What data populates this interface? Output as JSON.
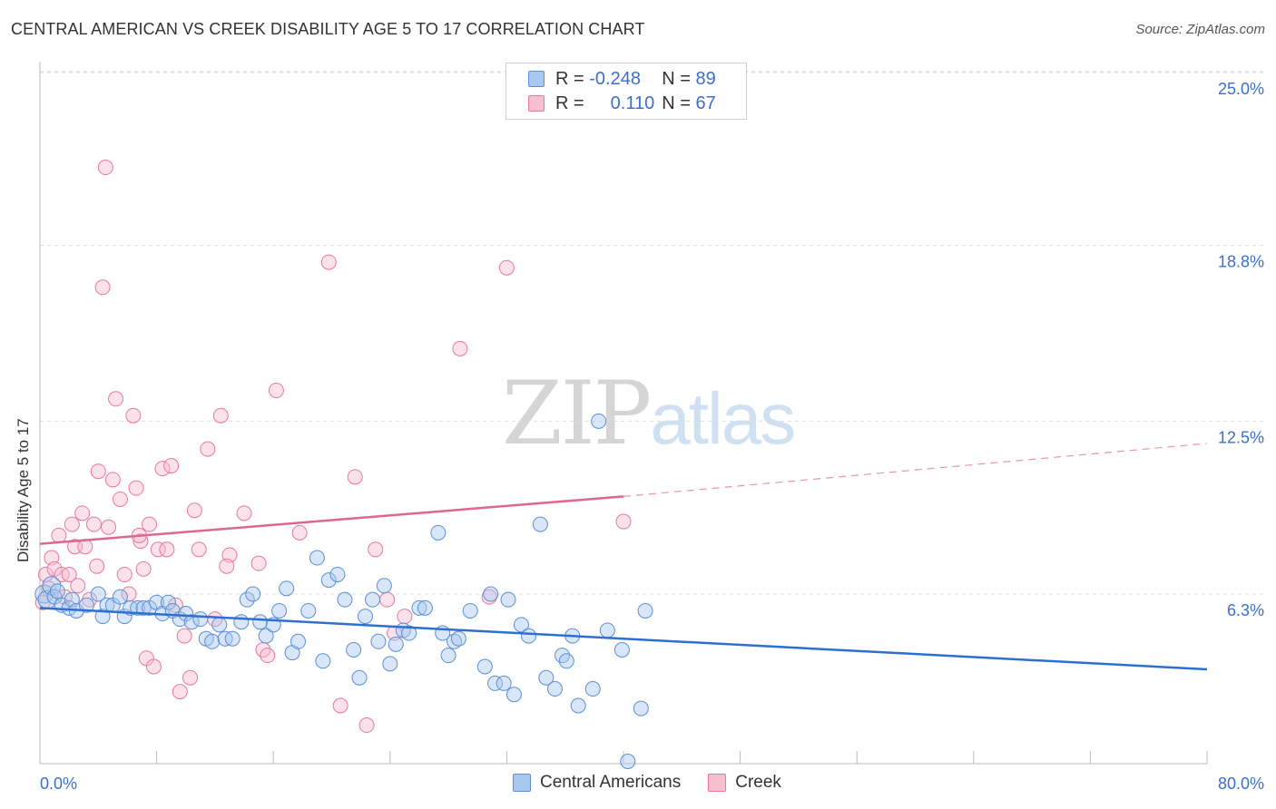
{
  "title": "CENTRAL AMERICAN VS CREEK DISABILITY AGE 5 TO 17 CORRELATION CHART",
  "source": "Source: ZipAtlas.com",
  "watermark": {
    "zip": "ZIP",
    "atlas": "atlas"
  },
  "legend_top": {
    "rows": [
      {
        "r_label": "R = ",
        "r_value": "-0.248",
        "n_label": "N = ",
        "n_value": "89"
      },
      {
        "r_label": "R = ",
        "r_value": "0.110",
        "n_label": "N = ",
        "n_value": "67"
      }
    ]
  },
  "colors": {
    "blue_fill": "#a9c8f0",
    "blue_stroke": "#5b8fd6",
    "blue_line": "#2e6fd1",
    "pink_fill": "#f6bfd0",
    "pink_stroke": "#e8789c",
    "pink_line": "#e06692",
    "tick_label": "#3b6fcf",
    "grid": "#dddddd"
  },
  "chart_data": {
    "type": "scatter",
    "title": "CENTRAL AMERICAN VS CREEK DISABILITY AGE 5 TO 17 CORRELATION CHART",
    "xlabel": "",
    "ylabel": "Disability Age 5 to 17",
    "xlim": [
      0,
      80
    ],
    "ylim": [
      0,
      26
    ],
    "x_tick_labels": [
      "0.0%",
      "80.0%"
    ],
    "y_ticks": [
      6.3,
      12.5,
      18.8,
      25.0
    ],
    "y_tick_labels": [
      "6.3%",
      "12.5%",
      "18.8%",
      "25.0%"
    ],
    "grid": "horizontal dashed",
    "legend": "bottom-center",
    "series": [
      {
        "name": "Central Americans",
        "r": -0.248,
        "n": 89,
        "trend": {
          "x": [
            0,
            80
          ],
          "y": [
            5.8,
            3.6
          ]
        },
        "points": [
          [
            0.3,
            6.3
          ],
          [
            0.5,
            6.1
          ],
          [
            0.8,
            6.6
          ],
          [
            1.0,
            6.2
          ],
          [
            1.2,
            6.4
          ],
          [
            1.5,
            5.9
          ],
          [
            2.0,
            5.8
          ],
          [
            2.2,
            6.1
          ],
          [
            2.5,
            5.7
          ],
          [
            3.2,
            5.9
          ],
          [
            4.0,
            6.3
          ],
          [
            4.3,
            5.5
          ],
          [
            4.6,
            5.9
          ],
          [
            5.0,
            5.9
          ],
          [
            5.5,
            6.2
          ],
          [
            5.8,
            5.5
          ],
          [
            6.2,
            5.8
          ],
          [
            6.7,
            5.8
          ],
          [
            7.1,
            5.8
          ],
          [
            7.5,
            5.8
          ],
          [
            8.0,
            6.0
          ],
          [
            8.4,
            5.6
          ],
          [
            8.8,
            6.0
          ],
          [
            9.1,
            5.7
          ],
          [
            9.6,
            5.4
          ],
          [
            10.0,
            5.6
          ],
          [
            10.4,
            5.3
          ],
          [
            11.0,
            5.4
          ],
          [
            11.4,
            4.7
          ],
          [
            11.8,
            4.6
          ],
          [
            12.3,
            5.2
          ],
          [
            12.7,
            4.7
          ],
          [
            13.2,
            4.7
          ],
          [
            13.8,
            5.3
          ],
          [
            14.2,
            6.1
          ],
          [
            14.6,
            6.3
          ],
          [
            15.1,
            5.3
          ],
          [
            15.5,
            4.8
          ],
          [
            16.0,
            5.2
          ],
          [
            16.4,
            5.7
          ],
          [
            16.9,
            6.5
          ],
          [
            17.3,
            4.2
          ],
          [
            17.7,
            4.6
          ],
          [
            18.4,
            5.7
          ],
          [
            19.0,
            7.6
          ],
          [
            19.4,
            3.9
          ],
          [
            19.8,
            6.8
          ],
          [
            20.4,
            7.0
          ],
          [
            20.9,
            6.1
          ],
          [
            21.5,
            4.3
          ],
          [
            21.9,
            3.3
          ],
          [
            22.3,
            5.5
          ],
          [
            22.8,
            6.1
          ],
          [
            23.2,
            4.6
          ],
          [
            23.6,
            6.6
          ],
          [
            24.0,
            3.8
          ],
          [
            24.4,
            4.5
          ],
          [
            24.9,
            5.0
          ],
          [
            25.3,
            4.9
          ],
          [
            26.0,
            5.8
          ],
          [
            26.4,
            5.8
          ],
          [
            27.3,
            8.5
          ],
          [
            27.6,
            4.9
          ],
          [
            28.0,
            4.1
          ],
          [
            28.4,
            4.6
          ],
          [
            28.7,
            4.7
          ],
          [
            29.5,
            5.7
          ],
          [
            30.5,
            3.7
          ],
          [
            30.9,
            6.3
          ],
          [
            31.2,
            3.1
          ],
          [
            31.8,
            3.1
          ],
          [
            32.1,
            6.1
          ],
          [
            32.5,
            2.7
          ],
          [
            33.0,
            5.2
          ],
          [
            33.5,
            4.8
          ],
          [
            34.3,
            8.8
          ],
          [
            34.7,
            3.3
          ],
          [
            35.3,
            2.9
          ],
          [
            35.8,
            4.1
          ],
          [
            36.1,
            3.9
          ],
          [
            36.5,
            4.8
          ],
          [
            36.9,
            2.3
          ],
          [
            37.9,
            2.9
          ],
          [
            38.3,
            12.5
          ],
          [
            38.9,
            5.0
          ],
          [
            39.9,
            4.3
          ],
          [
            40.3,
            0.3
          ],
          [
            41.2,
            2.2
          ],
          [
            41.5,
            5.7
          ]
        ]
      },
      {
        "name": "Creek",
        "r": 0.11,
        "n": 67,
        "trend": {
          "x": [
            0,
            40
          ],
          "y": [
            8.1,
            9.8
          ],
          "dashed_to": {
            "x": 80,
            "y": 11.7
          }
        },
        "points": [
          [
            0.2,
            6.0
          ],
          [
            0.4,
            7.0
          ],
          [
            0.6,
            6.5
          ],
          [
            0.8,
            7.6
          ],
          [
            1.0,
            7.2
          ],
          [
            1.3,
            8.4
          ],
          [
            1.5,
            7.0
          ],
          [
            1.7,
            6.2
          ],
          [
            2.0,
            7.0
          ],
          [
            2.2,
            8.8
          ],
          [
            2.4,
            8.0
          ],
          [
            2.6,
            6.6
          ],
          [
            2.9,
            9.2
          ],
          [
            3.1,
            8.0
          ],
          [
            3.4,
            6.1
          ],
          [
            3.7,
            8.8
          ],
          [
            4.0,
            10.7
          ],
          [
            4.3,
            17.3
          ],
          [
            4.5,
            21.6
          ],
          [
            4.7,
            8.7
          ],
          [
            5.0,
            10.4
          ],
          [
            5.2,
            13.3
          ],
          [
            5.5,
            9.7
          ],
          [
            5.8,
            7.0
          ],
          [
            6.1,
            6.3
          ],
          [
            6.4,
            12.7
          ],
          [
            6.6,
            10.1
          ],
          [
            6.9,
            8.2
          ],
          [
            7.1,
            7.2
          ],
          [
            7.3,
            4.0
          ],
          [
            7.5,
            8.8
          ],
          [
            7.8,
            3.7
          ],
          [
            8.1,
            7.9
          ],
          [
            8.4,
            10.8
          ],
          [
            8.7,
            7.9
          ],
          [
            9.0,
            10.9
          ],
          [
            9.3,
            5.9
          ],
          [
            9.6,
            2.8
          ],
          [
            9.9,
            4.8
          ],
          [
            10.3,
            3.3
          ],
          [
            10.6,
            9.3
          ],
          [
            10.9,
            7.9
          ],
          [
            11.5,
            11.5
          ],
          [
            12.0,
            5.4
          ],
          [
            12.4,
            12.7
          ],
          [
            13.0,
            7.7
          ],
          [
            14.0,
            9.2
          ],
          [
            15.0,
            7.4
          ],
          [
            15.3,
            4.3
          ],
          [
            15.6,
            4.1
          ],
          [
            16.2,
            13.6
          ],
          [
            17.8,
            8.5
          ],
          [
            19.8,
            18.2
          ],
          [
            20.6,
            2.3
          ],
          [
            21.6,
            10.5
          ],
          [
            22.4,
            1.6
          ],
          [
            23.0,
            7.9
          ],
          [
            23.8,
            6.1
          ],
          [
            24.3,
            4.9
          ],
          [
            28.8,
            15.1
          ],
          [
            30.8,
            6.2
          ],
          [
            32.0,
            18.0
          ],
          [
            40.0,
            8.9
          ],
          [
            25.0,
            5.5
          ],
          [
            12.8,
            7.3
          ],
          [
            6.8,
            8.4
          ],
          [
            3.9,
            7.3
          ]
        ]
      }
    ]
  },
  "legend_bottom": {
    "items": [
      "Central Americans",
      "Creek"
    ]
  }
}
